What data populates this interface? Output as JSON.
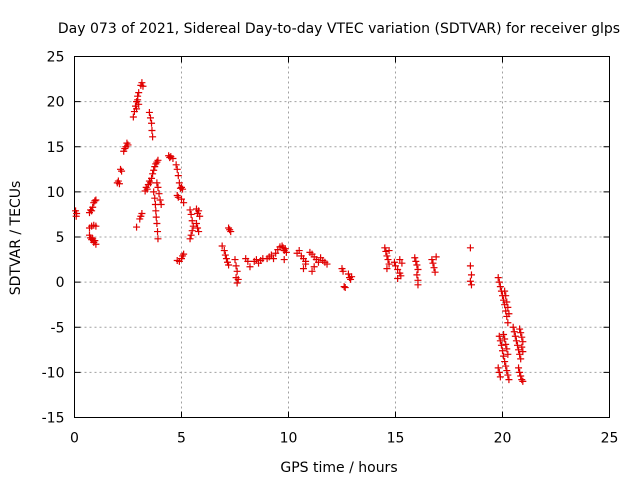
{
  "chart_data": {
    "type": "scatter",
    "title": "Day 073 of 2021, Sidereal Day-to-day VTEC variation (SDTVAR) for receiver glps",
    "xlabel": "GPS time / hours",
    "ylabel": "SDTVAR / TECUs",
    "xlim": [
      0,
      25
    ],
    "ylim": [
      -15,
      25
    ],
    "xticks": [
      0,
      5,
      10,
      15,
      20,
      25
    ],
    "yticks": [
      -15,
      -10,
      -5,
      0,
      5,
      10,
      15,
      20,
      25
    ],
    "xtick_labels": [
      "0",
      "5",
      "10",
      "15",
      "20",
      "25"
    ],
    "ytick_labels": [
      "-15",
      "-10",
      "-5",
      "0",
      "5",
      "10",
      "15",
      "20",
      "25"
    ],
    "grid": true,
    "marker": "plus",
    "marker_color": "#e00000",
    "series": [
      {
        "name": "SDTVAR",
        "points": [
          [
            0.05,
            7.9
          ],
          [
            0.08,
            7.3
          ],
          [
            0.1,
            7.6
          ],
          [
            0.7,
            7.7
          ],
          [
            0.75,
            8.0
          ],
          [
            0.8,
            7.9
          ],
          [
            0.85,
            8.3
          ],
          [
            0.9,
            8.8
          ],
          [
            0.95,
            9.0
          ],
          [
            1.0,
            9.1
          ],
          [
            0.7,
            6.0
          ],
          [
            0.8,
            6.2
          ],
          [
            0.9,
            6.3
          ],
          [
            1.0,
            6.2
          ],
          [
            0.7,
            5.2
          ],
          [
            0.75,
            4.9
          ],
          [
            0.8,
            4.7
          ],
          [
            0.85,
            4.8
          ],
          [
            0.9,
            4.4
          ],
          [
            0.95,
            4.6
          ],
          [
            1.0,
            4.2
          ],
          [
            2.0,
            11.0
          ],
          [
            2.05,
            11.2
          ],
          [
            2.1,
            10.9
          ],
          [
            2.15,
            12.5
          ],
          [
            2.2,
            12.3
          ],
          [
            2.3,
            14.5
          ],
          [
            2.35,
            14.8
          ],
          [
            2.4,
            15.0
          ],
          [
            2.45,
            15.4
          ],
          [
            2.5,
            15.2
          ],
          [
            2.75,
            18.3
          ],
          [
            2.8,
            18.9
          ],
          [
            2.85,
            19.5
          ],
          [
            2.9,
            20.0
          ],
          [
            2.95,
            20.6
          ],
          [
            2.9,
            19.2
          ],
          [
            2.95,
            20.2
          ],
          [
            3.0,
            21.0
          ],
          [
            3.0,
            19.7
          ],
          [
            3.1,
            21.8
          ],
          [
            3.15,
            22.1
          ],
          [
            3.2,
            21.7
          ],
          [
            2.9,
            6.1
          ],
          [
            3.05,
            7.0
          ],
          [
            3.1,
            7.3
          ],
          [
            3.15,
            7.6
          ],
          [
            3.3,
            10.1
          ],
          [
            3.35,
            10.5
          ],
          [
            3.4,
            10.3
          ],
          [
            3.45,
            10.8
          ],
          [
            3.5,
            11.2
          ],
          [
            3.55,
            11.0
          ],
          [
            3.5,
            18.8
          ],
          [
            3.55,
            18.2
          ],
          [
            3.6,
            17.6
          ],
          [
            3.62,
            16.8
          ],
          [
            3.65,
            16.1
          ],
          [
            3.6,
            11.5
          ],
          [
            3.65,
            12.0
          ],
          [
            3.7,
            12.4
          ],
          [
            3.75,
            12.8
          ],
          [
            3.8,
            13.1
          ],
          [
            3.85,
            13.3
          ],
          [
            3.9,
            13.5
          ],
          [
            3.7,
            10.0
          ],
          [
            3.75,
            9.3
          ],
          [
            3.78,
            8.6
          ],
          [
            3.8,
            7.9
          ],
          [
            3.82,
            7.2
          ],
          [
            3.85,
            6.5
          ],
          [
            3.88,
            5.6
          ],
          [
            3.9,
            4.8
          ],
          [
            3.85,
            11.0
          ],
          [
            3.9,
            10.5
          ],
          [
            3.95,
            9.8
          ],
          [
            4.0,
            9.1
          ],
          [
            4.05,
            8.6
          ],
          [
            4.4,
            14.0
          ],
          [
            4.45,
            13.8
          ],
          [
            4.5,
            13.9
          ],
          [
            4.6,
            13.7
          ],
          [
            4.75,
            13.0
          ],
          [
            4.8,
            12.5
          ],
          [
            4.85,
            11.8
          ],
          [
            4.9,
            11.0
          ],
          [
            4.95,
            10.4
          ],
          [
            5.0,
            10.5
          ],
          [
            5.05,
            10.3
          ],
          [
            4.8,
            9.6
          ],
          [
            4.85,
            9.4
          ],
          [
            5.0,
            9.2
          ],
          [
            5.1,
            8.8
          ],
          [
            4.8,
            2.4
          ],
          [
            4.9,
            2.3
          ],
          [
            5.0,
            2.6
          ],
          [
            5.05,
            2.9
          ],
          [
            5.1,
            3.1
          ],
          [
            5.4,
            8.0
          ],
          [
            5.45,
            7.5
          ],
          [
            5.5,
            6.8
          ],
          [
            5.55,
            6.2
          ],
          [
            5.5,
            5.7
          ],
          [
            5.45,
            5.2
          ],
          [
            5.4,
            4.8
          ],
          [
            5.7,
            8.1
          ],
          [
            5.75,
            7.6
          ],
          [
            5.8,
            7.9
          ],
          [
            5.85,
            7.3
          ],
          [
            5.7,
            6.5
          ],
          [
            5.75,
            6.0
          ],
          [
            5.8,
            5.6
          ],
          [
            6.9,
            4.0
          ],
          [
            7.0,
            3.5
          ],
          [
            7.05,
            3.0
          ],
          [
            7.1,
            2.6
          ],
          [
            7.15,
            2.2
          ],
          [
            7.2,
            1.9
          ],
          [
            7.2,
            6.0
          ],
          [
            7.25,
            5.8
          ],
          [
            7.3,
            5.6
          ],
          [
            7.5,
            2.5
          ],
          [
            7.55,
            1.8
          ],
          [
            7.6,
            1.2
          ],
          [
            7.55,
            0.5
          ],
          [
            7.6,
            -0.1
          ],
          [
            7.65,
            0.3
          ],
          [
            8.0,
            2.6
          ],
          [
            8.1,
            2.3
          ],
          [
            8.2,
            1.7
          ],
          [
            8.4,
            2.3
          ],
          [
            8.5,
            2.5
          ],
          [
            8.6,
            2.1
          ],
          [
            8.7,
            2.4
          ],
          [
            8.8,
            2.6
          ],
          [
            9.0,
            2.6
          ],
          [
            9.1,
            2.8
          ],
          [
            9.2,
            3.0
          ],
          [
            9.3,
            2.6
          ],
          [
            9.4,
            3.2
          ],
          [
            9.5,
            3.6
          ],
          [
            9.6,
            3.9
          ],
          [
            9.7,
            4.0
          ],
          [
            9.75,
            3.8
          ],
          [
            9.8,
            3.5
          ],
          [
            9.85,
            3.7
          ],
          [
            9.9,
            3.3
          ],
          [
            9.8,
            2.5
          ],
          [
            10.4,
            3.2
          ],
          [
            10.5,
            3.5
          ],
          [
            10.6,
            2.9
          ],
          [
            10.7,
            2.6
          ],
          [
            10.8,
            2.3
          ],
          [
            10.7,
            1.5
          ],
          [
            10.8,
            2.0
          ],
          [
            11.0,
            3.3
          ],
          [
            11.1,
            3.1
          ],
          [
            11.2,
            2.8
          ],
          [
            11.3,
            2.5
          ],
          [
            11.4,
            2.2
          ],
          [
            11.5,
            2.7
          ],
          [
            11.6,
            2.4
          ],
          [
            11.7,
            2.2
          ],
          [
            11.8,
            2.0
          ],
          [
            11.1,
            1.2
          ],
          [
            11.2,
            1.7
          ],
          [
            12.5,
            1.5
          ],
          [
            12.55,
            1.2
          ],
          [
            12.6,
            -0.5
          ],
          [
            12.65,
            -0.6
          ],
          [
            12.8,
            0.9
          ],
          [
            12.85,
            0.5
          ],
          [
            12.9,
            0.3
          ],
          [
            12.95,
            0.6
          ],
          [
            14.5,
            3.8
          ],
          [
            14.55,
            3.4
          ],
          [
            14.6,
            2.9
          ],
          [
            14.65,
            2.5
          ],
          [
            14.7,
            2.0
          ],
          [
            14.6,
            1.5
          ],
          [
            14.7,
            3.5
          ],
          [
            14.95,
            2.2
          ],
          [
            15.0,
            1.8
          ],
          [
            15.1,
            1.4
          ],
          [
            15.2,
            1.0
          ],
          [
            15.25,
            0.7
          ],
          [
            15.1,
            0.4
          ],
          [
            15.2,
            2.5
          ],
          [
            15.3,
            2.1
          ],
          [
            15.9,
            2.7
          ],
          [
            15.95,
            2.3
          ],
          [
            16.0,
            1.9
          ],
          [
            16.05,
            1.4
          ],
          [
            16.0,
            0.8
          ],
          [
            16.05,
            0.2
          ],
          [
            16.05,
            -0.3
          ],
          [
            16.7,
            2.5
          ],
          [
            16.75,
            2.1
          ],
          [
            16.8,
            1.6
          ],
          [
            16.85,
            1.1
          ],
          [
            16.9,
            2.8
          ],
          [
            18.5,
            3.8
          ],
          [
            18.5,
            1.8
          ],
          [
            18.55,
            0.8
          ],
          [
            18.5,
            0.1
          ],
          [
            18.55,
            -0.3
          ],
          [
            19.8,
            0.5
          ],
          [
            19.85,
            0.0
          ],
          [
            19.9,
            -0.5
          ],
          [
            19.95,
            -1.0
          ],
          [
            20.0,
            -1.5
          ],
          [
            20.05,
            -2.0
          ],
          [
            20.1,
            -2.5
          ],
          [
            20.15,
            -3.2
          ],
          [
            20.2,
            -3.8
          ],
          [
            20.25,
            -4.5
          ],
          [
            20.1,
            -1.0
          ],
          [
            20.15,
            -1.5
          ],
          [
            20.2,
            -2.2
          ],
          [
            20.25,
            -2.8
          ],
          [
            20.3,
            -3.5
          ],
          [
            19.85,
            -6.0
          ],
          [
            19.9,
            -6.5
          ],
          [
            19.95,
            -7.0
          ],
          [
            20.0,
            -7.6
          ],
          [
            20.05,
            -8.2
          ],
          [
            20.1,
            -8.8
          ],
          [
            20.15,
            -9.3
          ],
          [
            20.2,
            -9.8
          ],
          [
            20.25,
            -10.3
          ],
          [
            20.3,
            -10.8
          ],
          [
            20.05,
            -5.8
          ],
          [
            20.1,
            -6.3
          ],
          [
            20.15,
            -6.9
          ],
          [
            20.2,
            -7.4
          ],
          [
            20.25,
            -8.0
          ],
          [
            19.8,
            -9.5
          ],
          [
            19.85,
            -10.0
          ],
          [
            19.9,
            -10.5
          ],
          [
            20.5,
            -5.0
          ],
          [
            20.55,
            -5.5
          ],
          [
            20.6,
            -6.0
          ],
          [
            20.65,
            -6.5
          ],
          [
            20.7,
            -7.0
          ],
          [
            20.75,
            -7.5
          ],
          [
            20.8,
            -8.0
          ],
          [
            20.85,
            -8.5
          ],
          [
            20.75,
            -9.5
          ],
          [
            20.8,
            -10.0
          ],
          [
            20.85,
            -10.4
          ],
          [
            20.9,
            -10.8
          ],
          [
            20.95,
            -11.0
          ],
          [
            20.8,
            -5.2
          ],
          [
            20.85,
            -5.6
          ],
          [
            20.9,
            -6.1
          ],
          [
            20.95,
            -6.6
          ],
          [
            20.9,
            -7.2
          ],
          [
            20.95,
            -7.7
          ]
        ]
      }
    ]
  }
}
